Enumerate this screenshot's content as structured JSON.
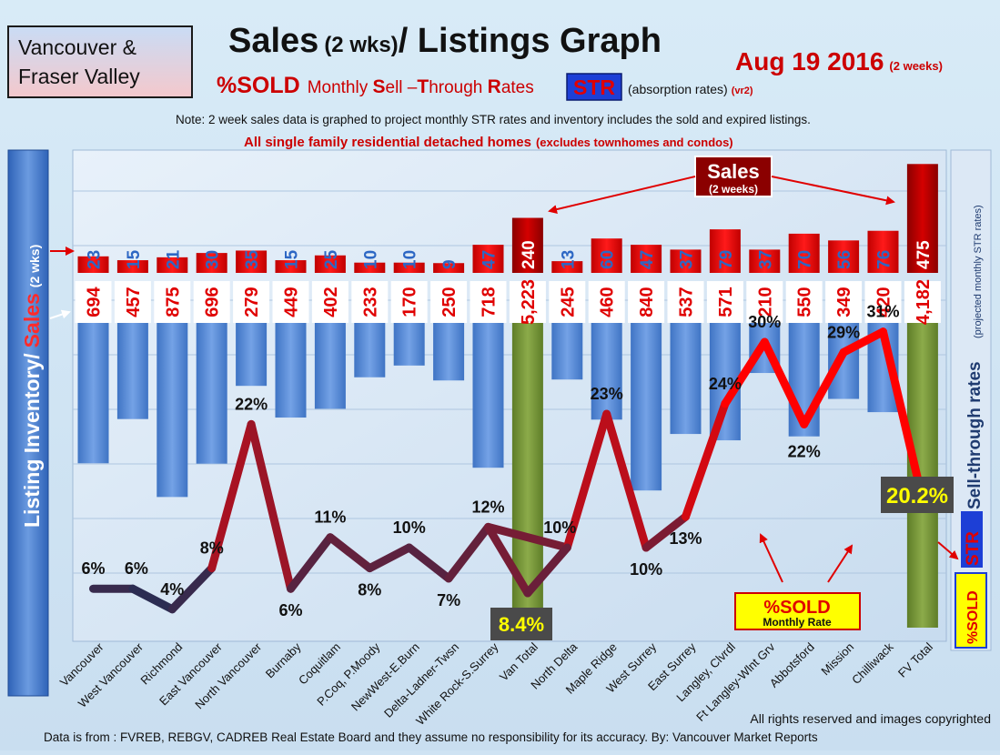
{
  "header": {
    "region_line1": "Vancouver &",
    "region_line2": "Fraser Valley",
    "title_main": "Sales",
    "title_small": "(2 wks)",
    "title_rest": "/ Listings Graph",
    "date": "Aug 19 2016",
    "date_small": "(2 weeks)",
    "sold_label": "%SOLD",
    "str_m": "M",
    "str_onthly": "onthly ",
    "str_s": "S",
    "str_ell": "ell –",
    "str_t": "T",
    "str_hrough": "hrough ",
    "str_r": "R",
    "str_ates": "ates",
    "str_badge": "STR",
    "absorption": "(absorption rates)",
    "version": "(vr2)",
    "note": "Note: 2 week sales data is graphed to project monthly STR rates and inventory includes the sold and expired listings.",
    "subtitle_main": "All single family residential detached homes",
    "subtitle_small": "(excludes townhomes and condos)"
  },
  "left_axis": {
    "part1": "Listing Inventory/",
    "part2": "Sales",
    "part3": "(2 wks)"
  },
  "right_axis": {
    "rates_label": "Sell-through rates",
    "rates_small": "(projected monthly STR rates)",
    "str_badge": "STR",
    "sold_badge": "%SOLD"
  },
  "annotations": {
    "sales_label": "Sales",
    "sales_small": "(2 weeks)",
    "monthly_sold_top": "%SOLD",
    "monthly_sold_bottom": "Monthly Rate",
    "van_total_rate": "8.4%",
    "fv_total_rate": "20.2%"
  },
  "footer": {
    "rights": "All rights reserved and  images copyrighted",
    "source": "Data is from : FVREB, REBGV, CADREB Real Estate Board and they assume no responsibility  for its accuracy. By: Vancouver Market Reports"
  },
  "colors": {
    "sales": "#ee0000",
    "listings": "#5b8fd6",
    "total": "#7a9a3a",
    "line_high": "#ff0000",
    "line_low": "#1f2f57"
  },
  "chart_data": {
    "type": "bar",
    "categories": [
      "Vancouver",
      "West Vancouver",
      "Richmond",
      "East Vancouver",
      "North Vancouver",
      "Burnaby",
      "Coquitlam",
      "P.Coq, P.Moody",
      "NewWest-E.Burn",
      "Delta-Ladner-Twsn",
      "White Rock-S.Surrey",
      "Van Total",
      "North Delta",
      "Maple Ridge",
      "West Surrey",
      "East Surrey",
      "Langley, Clvrdl",
      "Ft Langley-Wlnt Grv",
      "Abbotsford",
      "Mission",
      "Chilliwack",
      "FV Total"
    ],
    "series": [
      {
        "name": "Sales",
        "values": [
          23,
          15,
          21,
          30,
          35,
          15,
          25,
          10,
          10,
          9,
          47,
          240,
          13,
          60,
          47,
          37,
          79,
          37,
          70,
          56,
          76,
          475
        ]
      },
      {
        "name": "Listing Inventory",
        "values": [
          694,
          457,
          875,
          696,
          279,
          449,
          402,
          233,
          170,
          250,
          718,
          5223,
          245,
          460,
          840,
          537,
          571,
          210,
          550,
          349,
          420,
          4182
        ]
      },
      {
        "name": "%SOLD",
        "values": [
          6,
          6,
          4,
          8,
          22,
          6,
          11,
          8,
          10,
          7,
          12,
          null,
          10,
          23,
          10,
          13,
          24,
          30,
          22,
          29,
          31,
          null
        ]
      }
    ],
    "rate_labels": [
      "6%",
      "6%",
      "4%",
      "8%",
      "22%",
      "6%",
      "11%",
      "8%",
      "10%",
      "7%",
      "12%",
      "",
      "10%",
      "23%",
      "10%",
      "13%",
      "24%",
      "30%",
      "22%",
      "29%",
      "31%",
      ""
    ],
    "totals": {
      "Van Total": 8.4,
      "FV Total": 20.2
    }
  }
}
